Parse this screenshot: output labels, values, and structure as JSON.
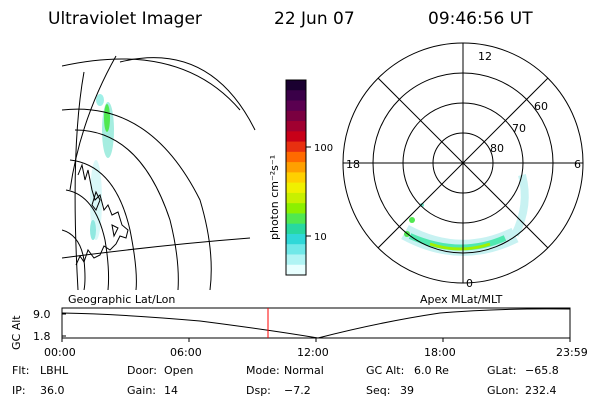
{
  "header": {
    "instrument": "Ultraviolet Imager",
    "date": "22 Jun 07",
    "time": "09:46:56 UT"
  },
  "colorbar": {
    "label": "photon cm⁻²s⁻¹",
    "ticks": [
      "100",
      "10"
    ],
    "colors": [
      "#1a0030",
      "#3a0048",
      "#5a0050",
      "#7a0040",
      "#a00030",
      "#c80018",
      "#e83010",
      "#ff6a00",
      "#ffa000",
      "#ffd000",
      "#f0f000",
      "#c8f000",
      "#8cf000",
      "#50e850",
      "#28d8a0",
      "#30d8d8",
      "#70e8e8",
      "#b0f4f4",
      "#e8ffff"
    ]
  },
  "maps": {
    "left_label": "Geographic Lat/Lon",
    "right_label": "Apex MLat/MLT",
    "mlt_labels": [
      "12",
      "18",
      "6",
      "0"
    ],
    "mlat_labels": [
      "60",
      "70",
      "80"
    ]
  },
  "altitude_plot": {
    "ylabel": "GC Alt",
    "yticks": [
      "9.0",
      "1.8"
    ],
    "xticks": [
      "00:00",
      "06:00",
      "12:00",
      "18:00",
      "23:59"
    ],
    "marker_time": "09:46:56",
    "marker_color": "#ff0000"
  },
  "info": {
    "row1": [
      {
        "label": "Flt:",
        "value": "LBHL"
      },
      {
        "label": "Door:",
        "value": "Open"
      },
      {
        "label": "Mode:",
        "value": "Normal"
      },
      {
        "label": "GC Alt:",
        "value": "6.0 Re"
      },
      {
        "label": "GLat:",
        "value": "−65.8"
      }
    ],
    "row2": [
      {
        "label": "IP:",
        "value": "36.0"
      },
      {
        "label": "Gain:",
        "value": "14"
      },
      {
        "label": "Dsp:",
        "value": "−7.2"
      },
      {
        "label": "Seq:",
        "value": "39"
      },
      {
        "label": "GLon:",
        "value": "232.4"
      }
    ]
  }
}
